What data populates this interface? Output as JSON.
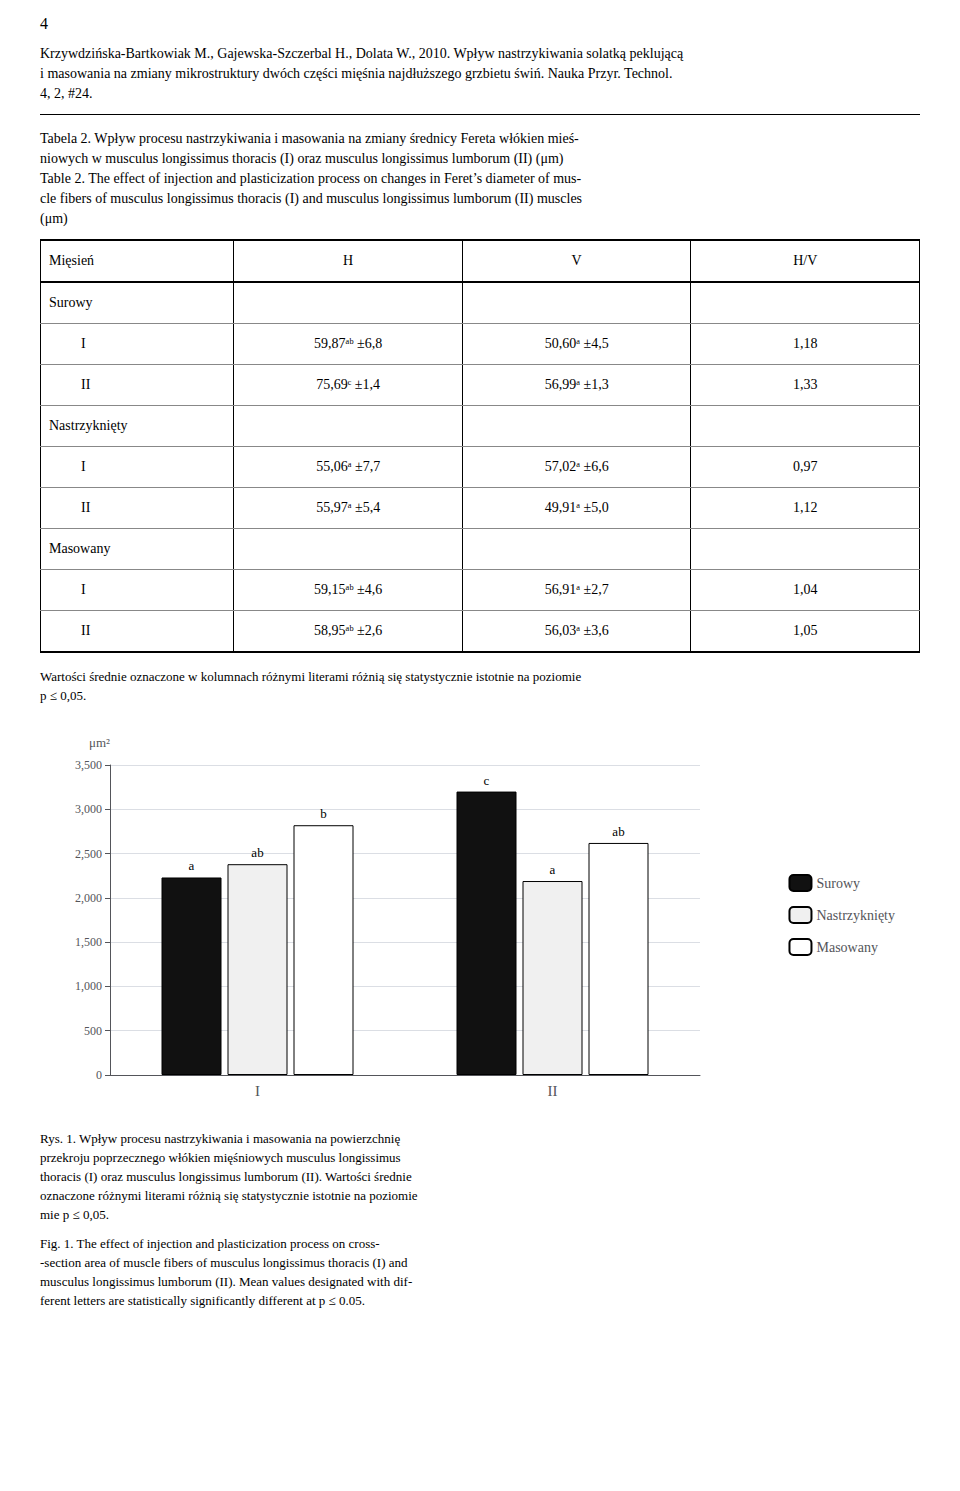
{
  "chart_data": {
    "type": "bar",
    "categories": [
      "I",
      "II"
    ],
    "series": [
      {
        "name": "Surowy",
        "color": "#111111",
        "values": [
          2230,
          3200
        ],
        "value_labels": [
          "a",
          "c"
        ]
      },
      {
        "name": "Nastrzyknięty",
        "color": "#f0f0f0",
        "values": [
          2380,
          2190
        ],
        "value_labels": [
          "ab",
          "a"
        ]
      },
      {
        "name": "Masowany",
        "color": "#ffffff",
        "values": [
          2820,
          2620
        ],
        "value_labels": [
          "b",
          "ab"
        ]
      }
    ],
    "ylabel": "μm²",
    "ylim": [
      0,
      3500
    ],
    "yticks": [
      0,
      500,
      1000,
      1500,
      2000,
      2500,
      3000,
      3500
    ],
    "grid": true,
    "legend": "right",
    "annotations": [
      [
        "4"
      ],
      [
        "Krzywdzińska-Bartkowiak M., Gajewska-Szczerbal H., Dolata W., 2010. Wpływ nastrzykiwania solatką peklującą",
        "i masowania na zmiany mikrostruktury dwóch części mięśnia najdłuższego grzbietu świń. Nauka Przyr. Technol.",
        "4, 2, #24."
      ],
      [
        "Tabela 2. Wpływ procesu nastrzykiwania i masowania na zmiany średnicy Fereta włókien mieś-",
        "niowych w musculus longissimus thoracis (I) oraz musculus longissimus lumborum (II) (μm)",
        "Table 2. The effect of injection and plasticization process on changes in Feret’s diameter of mus-",
        "cle fibers of musculus longissimus thoracis (I) and musculus longissimus lumborum (II) muscles",
        "(μm)"
      ],
      [
        "Wartości średnie oznaczone w kolumnach różnymi literami różnią się statystycznie istotnie na poziomie",
        "p ≤ 0,05."
      ],
      [
        "Rys. 1. Wpływ procesu nastrzykiwania i masowania na powierzchnię",
        "przekroju poprzecznego włókien mięśniowych musculus longissimus",
        "thoracis (I) oraz musculus longissimus lumborum (II). Wartości średnie",
        "oznaczone różnymi literami różnią się statystycznie istotnie na poziomie",
        "mie p ≤ 0,05."
      ],
      [
        "Fig. 1. The effect of injection and plasticization process on cross-",
        "-section area of muscle fibers of musculus longissimus thoracis (I) and",
        "musculus longissimus lumborum (II). Mean values designated with dif-",
        "ferent letters are statistically significantly different at p ≤ 0.05."
      ]
    ],
    "table": {
      "header": [
        "Mięsień",
        "H",
        "V",
        "H/V"
      ],
      "rows": [
        [
          "Surowy",
          null,
          null,
          null
        ],
        [
          "I",
          "59,87ᵃᵇ ±6,8",
          "50,60ᵃ ±4,5",
          "1,18"
        ],
        [
          "II",
          "75,69ᶜ ±1,4",
          "56,99ᵃ ±1,3",
          "1,33"
        ],
        [
          "Nastrzyknięty",
          null,
          null,
          null
        ],
        [
          "I",
          "55,06ᵃ ±7,7",
          "57,02ᵃ ±6,6",
          "0,97"
        ],
        [
          "II",
          "55,97ᵃ ±5,4",
          "49,91ᵃ ±5,0",
          "1,12"
        ],
        [
          "Masowany",
          null,
          null,
          null
        ],
        [
          "I",
          "59,15ᵃᵇ ±4,6",
          "56,91ᵃ ±2,7",
          "1,04"
        ],
        [
          "II",
          "58,95ᵃᵇ ±2,6",
          "56,03ᵃ ±3,6",
          "1,05"
        ]
      ]
    }
  }
}
